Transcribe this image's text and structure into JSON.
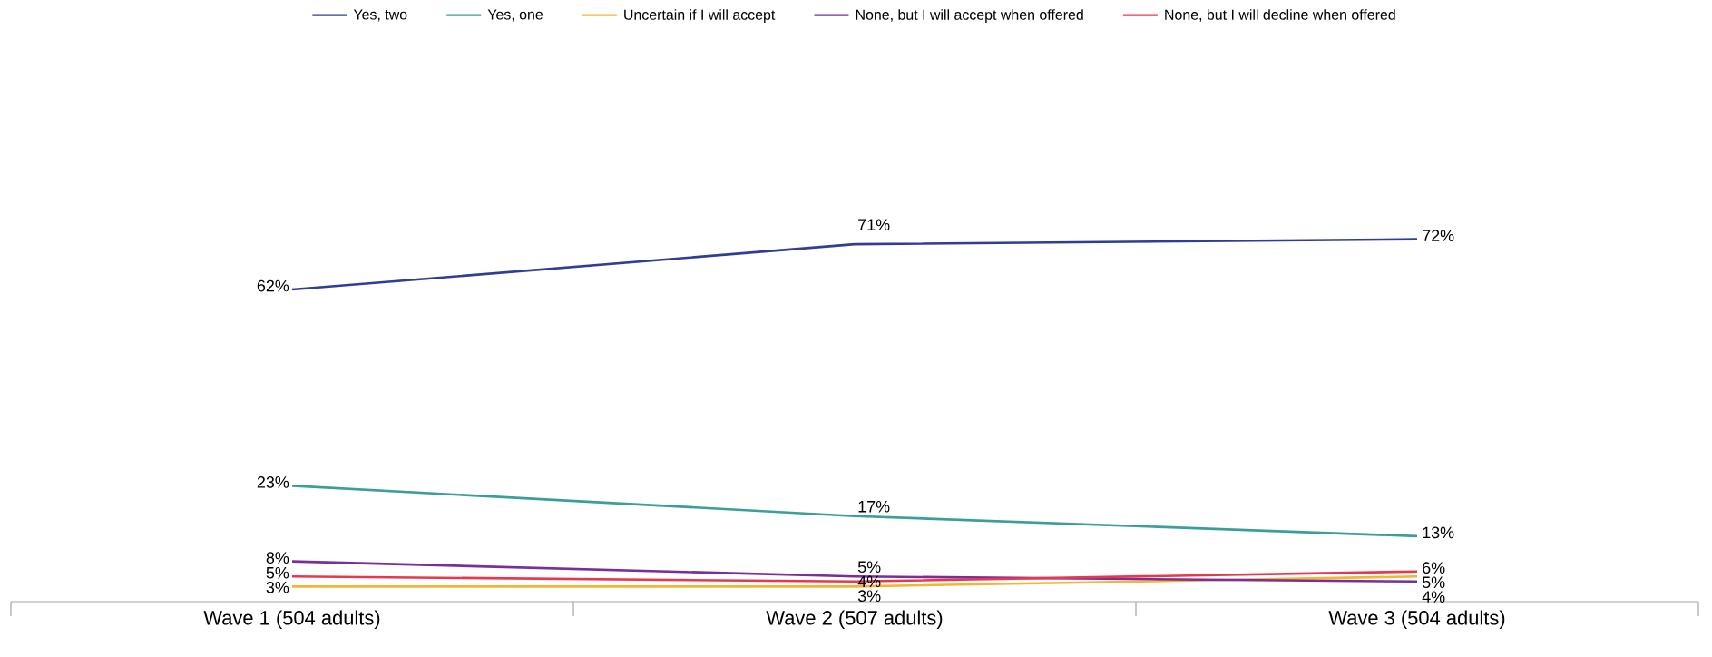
{
  "chart_data": {
    "type": "line",
    "categories": [
      "Wave 1 (504 adults)",
      "Wave 2 (507 adults)",
      "Wave 3 (504 adults)"
    ],
    "legend": "top",
    "series": [
      {
        "name": "Yes, two",
        "color": "#2e3d98",
        "values": [
          62,
          71,
          72
        ],
        "value_labels": [
          "62%",
          "71%",
          "72%"
        ]
      },
      {
        "name": "Yes, one",
        "color": "#3a9e9a",
        "values": [
          23,
          17,
          13
        ],
        "value_labels": [
          "23%",
          "17%",
          "13%"
        ]
      },
      {
        "name": "Uncertain if I will accept",
        "color": "#f2b632",
        "values": [
          3,
          3,
          5
        ],
        "value_labels": [
          "3%",
          "3%",
          "5%"
        ]
      },
      {
        "name": "None, but I will accept when offered",
        "color": "#7b2d9a",
        "values": [
          8,
          5,
          4
        ],
        "value_labels": [
          "8%",
          "5%",
          "4%"
        ]
      },
      {
        "name": "None, but I will decline when offered",
        "color": "#e8374f",
        "values": [
          5,
          4,
          6
        ],
        "value_labels": [
          "5%",
          "4%",
          "6%"
        ]
      }
    ]
  }
}
